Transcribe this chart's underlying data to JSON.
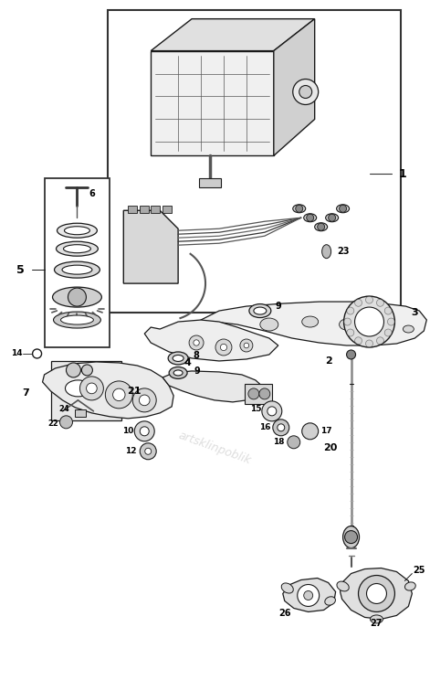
{
  "bg_color": "#ffffff",
  "lc": "#1a1a1a",
  "fig_width": 4.71,
  "fig_height": 7.44,
  "dpi": 100,
  "watermark": "artsklinpoblik"
}
